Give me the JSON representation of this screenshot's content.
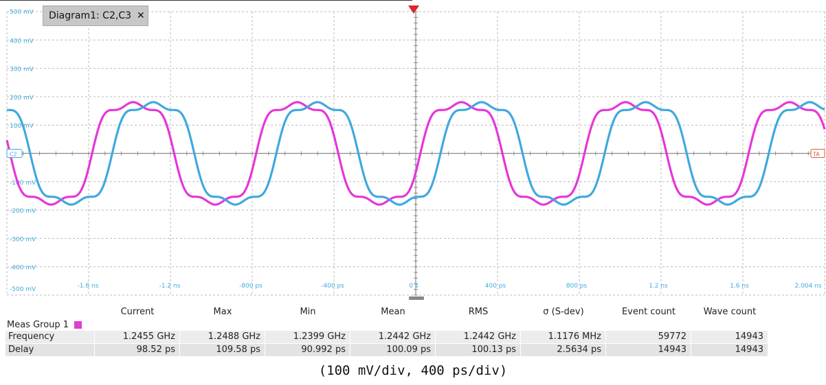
{
  "diagram_tab": {
    "label": "Diagram1: C2,C3",
    "close_icon": "close-icon"
  },
  "colors": {
    "c2": "#e636d8",
    "c3": "#3fa9dd",
    "grid": "#b9b9b9",
    "axis": "#8a8a8a",
    "tag_c2": "#3fa9dd",
    "tag_ta": "#e05a3a"
  },
  "markers": {
    "left": "C2",
    "right": "TA"
  },
  "chart_data": {
    "type": "line",
    "xlabel": "",
    "ylabel": "",
    "y_ticks": [
      "500 mV",
      "400 mV",
      "300 mV",
      "200 mV",
      "100 mV",
      "",
      "-100 mV",
      "-200 mV",
      "-300 mV",
      "-400 mV",
      "-500 mV"
    ],
    "x_ticks": [
      "-1.6 ns",
      "-1.2 ns",
      "-800 ps",
      "-400 ps",
      "0 s",
      "400 ps",
      "800 ps",
      "1.2 ns",
      "1.6 ns",
      "2.004 ns"
    ],
    "series": [
      {
        "name": "C2",
        "frequency_ghz": 1.2455,
        "amplitude_mv": 350
      },
      {
        "name": "C3",
        "frequency_ghz": 1.2455,
        "amplitude_mv": 350,
        "delay_ps": 98.52
      }
    ]
  },
  "meas": {
    "group": "Meas Group 1",
    "headers": [
      "Current",
      "Max",
      "Min",
      "Mean",
      "RMS",
      "σ (S-dev)",
      "Event count",
      "Wave count"
    ],
    "rows": [
      {
        "label": "Frequency",
        "values": [
          "1.2455 GHz",
          "1.2488 GHz",
          "1.2399 GHz",
          "1.2442 GHz",
          "1.2442 GHz",
          "1.1176 MHz",
          "59772",
          "14943"
        ]
      },
      {
        "label": "Delay",
        "values": [
          "98.52 ps",
          "109.58 ps",
          "90.992 ps",
          "100.09 ps",
          "100.13 ps",
          "2.5634 ps",
          "14943",
          "14943"
        ]
      }
    ]
  },
  "caption": "(100 mV/div, 400 ps/div)"
}
